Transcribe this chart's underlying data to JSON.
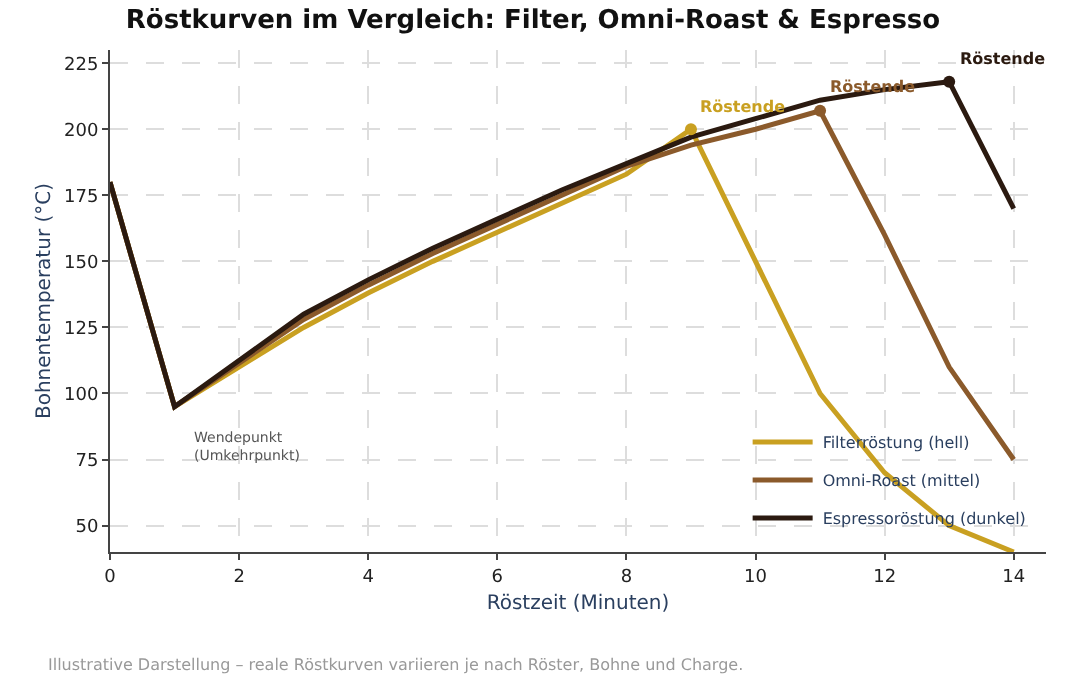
{
  "chart_data": {
    "type": "line",
    "title": "Röstkurven im Vergleich: Filter, Omni-Roast & Espresso",
    "xlabel": "Röstzeit (Minuten)",
    "ylabel": "Bohnentemperatur (°C)",
    "xlim": [
      0,
      14.5
    ],
    "xticks": [
      0,
      2,
      4,
      6,
      8,
      10,
      12,
      14
    ],
    "ylim": [
      40,
      230
    ],
    "yticks": [
      50,
      75,
      100,
      125,
      150,
      175,
      200,
      225
    ],
    "grid": true,
    "legend": "bottom right",
    "line_style": "solid",
    "series": [
      {
        "name": "Filterröstung (hell)",
        "color": "#c9a021",
        "x": [
          0,
          1,
          3,
          4,
          5,
          6,
          7,
          8,
          9,
          10,
          11,
          12,
          13,
          14
        ],
        "values": [
          180,
          95,
          125,
          138,
          150,
          161,
          172,
          183,
          200,
          150,
          100,
          70,
          50,
          40
        ]
      },
      {
        "name": "Omni-Roast (mittel)",
        "color": "#8b5a2b",
        "x": [
          0,
          1,
          3,
          4,
          5,
          6,
          7,
          8,
          9,
          10,
          11,
          12,
          13,
          14
        ],
        "values": [
          180,
          95,
          128,
          141,
          153,
          164,
          175,
          186,
          194,
          200,
          207,
          160,
          110,
          75
        ]
      },
      {
        "name": "Espressoröstung (dunkel)",
        "color": "#2b1a10",
        "x": [
          0,
          1,
          3,
          4,
          5,
          6,
          7,
          8,
          9,
          10,
          11,
          12,
          13,
          14
        ],
        "values": [
          180,
          95,
          130,
          143,
          155,
          166,
          177,
          187,
          197,
          204,
          211,
          215,
          218,
          170
        ]
      }
    ],
    "annotations": [
      {
        "text": "Röstende",
        "x": 9,
        "y": 200
      },
      {
        "text": "Röstende",
        "x": 11,
        "y": 207
      },
      {
        "text": "Röstende",
        "x": 13,
        "y": 218
      },
      {
        "text": "Wendepunkt\n(Umkehrpunkt)",
        "x": 1,
        "y": 95
      },
      "Illustrative Darstellung – reale Röstkurven variieren je nach Röster, Bohne und Charge."
    ]
  }
}
